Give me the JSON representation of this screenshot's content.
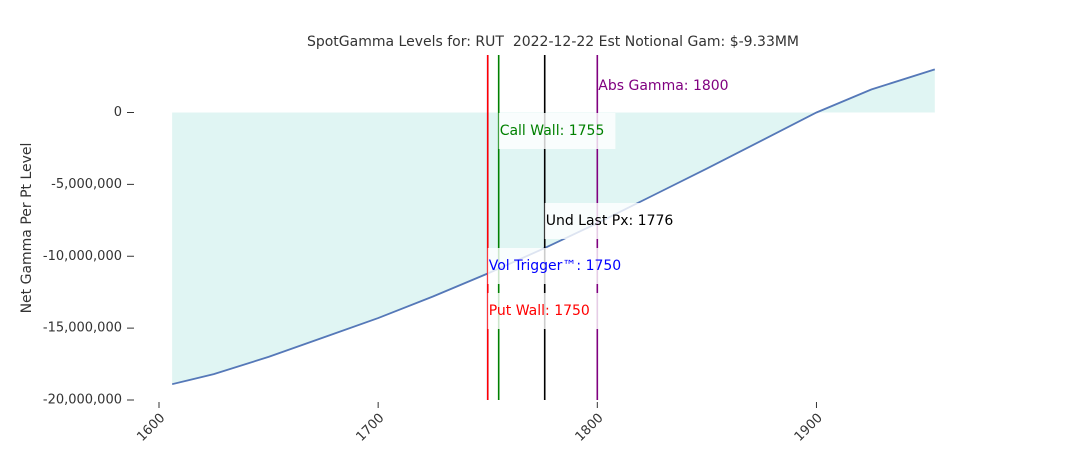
{
  "chart_data": {
    "type": "line",
    "title": "SpotGamma Levels for: RUT  2022-12-22 Est Notional Gam: $-9.33MM",
    "ylabel": "Net Gamma Per Pt Level",
    "x": [
      1606,
      1625,
      1650,
      1675,
      1700,
      1725,
      1750,
      1775,
      1800,
      1825,
      1850,
      1875,
      1900,
      1925,
      1954
    ],
    "series": [
      {
        "color": "#5578b8",
        "values": [
          -18900000,
          -18200000,
          -17000000,
          -15650000,
          -14300000,
          -12800000,
          -11200000,
          -9500000,
          -7700000,
          -5800000,
          -3900000,
          -1950000,
          0,
          1600000,
          3000000
        ]
      }
    ],
    "fill_color": "#e0f5f3",
    "xlim": [
      1600,
      1955
    ],
    "ylim": [
      -20000000,
      4000000
    ],
    "xticks": [
      1600,
      1700,
      1800,
      1900
    ],
    "yticks": [
      0,
      {
        "value": -5000000,
        "label": "-5,000,000"
      },
      {
        "value": -10000000,
        "label": "-10,000,000"
      },
      {
        "value": -15000000,
        "label": "-15,000,000"
      },
      {
        "value": -20000000,
        "label": "-20,000,000"
      }
    ],
    "levels": [
      {
        "label": "Abs Gamma: 1800",
        "value": 1800,
        "color": "#800080"
      },
      {
        "label": "Call Wall: 1755",
        "value": 1755,
        "color": "#008000"
      },
      {
        "label": "Und Last Px: 1776",
        "value": 1776,
        "color": "#000000"
      },
      {
        "label": "Vol Trigger™: 1750",
        "value": 1750,
        "color": "#0000ff"
      },
      {
        "label": "Put Wall: 1750",
        "value": 1750,
        "color": "#ff0000"
      }
    ]
  }
}
